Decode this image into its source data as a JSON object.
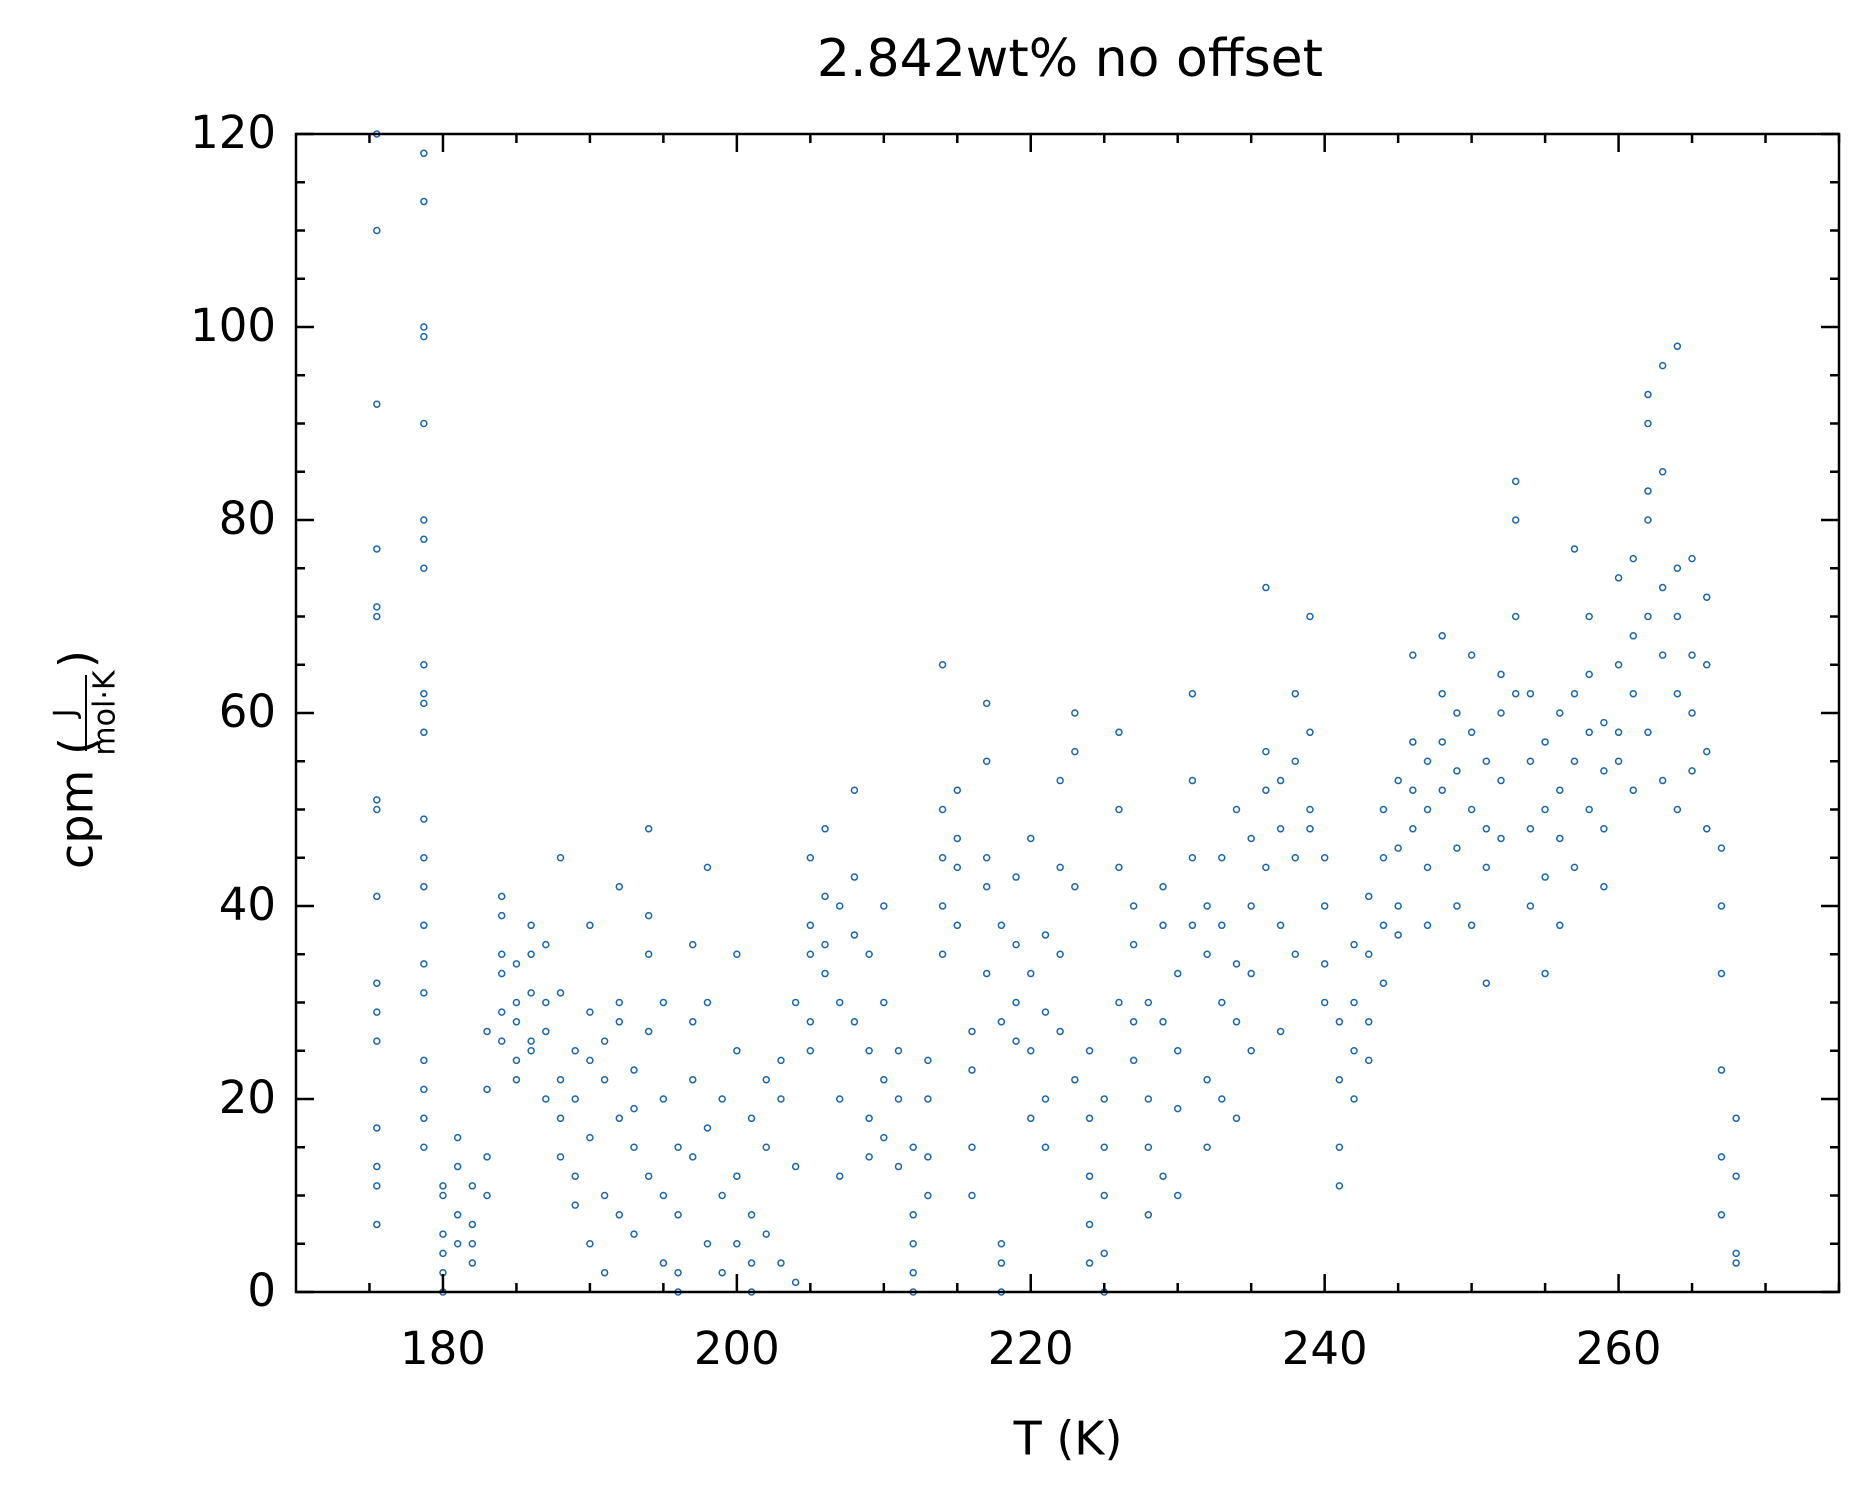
{
  "chart_data": {
    "type": "scatter",
    "title": "2.842wt% no offset",
    "xlabel": "T (K)",
    "ylabel_open": "cpm (",
    "ylabel_unit_numerator": "J",
    "ylabel_unit_denominator": "mol·K",
    "ylabel_close": ")",
    "xlim": [
      170,
      275
    ],
    "xticks": [
      180,
      200,
      220,
      240,
      260
    ],
    "xminorticks": [
      175,
      185,
      190,
      195,
      205,
      210,
      215,
      225,
      230,
      235,
      245,
      250,
      255,
      265,
      270,
      275
    ],
    "ylim": [
      0,
      120
    ],
    "yticks": [
      0,
      20,
      40,
      60,
      80,
      100,
      120
    ],
    "yminorticks": [
      5,
      10,
      15,
      25,
      30,
      35,
      45,
      50,
      55,
      65,
      70,
      75,
      85,
      90,
      95,
      105,
      110,
      115
    ],
    "series": [
      {
        "color": "#1a66ad",
        "x": [
          175.5,
          175.5,
          175.5,
          175.5,
          175.5,
          175.5,
          175.5,
          175.5,
          175.5,
          175.5,
          175.5,
          175.5,
          175.5,
          175.5,
          175.5,
          175.5,
          178.7,
          178.7,
          178.7,
          178.7,
          178.7,
          178.7,
          178.7,
          178.7,
          178.7,
          178.7,
          178.7,
          178.7,
          178.7,
          178.7,
          178.7,
          178.7,
          178.7,
          178.7,
          178.7,
          178.7,
          178.7,
          178.7,
          180,
          180,
          180,
          180,
          180,
          180,
          181,
          181,
          181,
          181,
          182,
          182,
          182,
          182,
          183,
          183,
          183,
          183,
          184,
          184,
          184,
          184,
          184,
          184,
          185,
          185,
          185,
          185,
          185,
          186,
          186,
          186,
          186,
          186,
          187,
          187,
          187,
          187,
          188,
          188,
          188,
          188,
          188,
          189,
          189,
          189,
          189,
          190,
          190,
          190,
          190,
          190,
          191,
          191,
          191,
          191,
          192,
          192,
          192,
          192,
          192,
          193,
          193,
          193,
          193,
          194,
          194,
          194,
          194,
          194,
          195,
          195,
          195,
          195,
          196,
          196,
          196,
          196,
          197,
          197,
          197,
          197,
          198,
          198,
          198,
          198,
          199,
          199,
          199,
          200,
          200,
          200,
          200,
          201,
          201,
          201,
          201,
          202,
          202,
          202,
          203,
          203,
          203,
          204,
          204,
          204,
          205,
          205,
          205,
          205,
          205,
          206,
          206,
          206,
          206,
          207,
          207,
          207,
          207,
          208,
          208,
          208,
          208,
          209,
          209,
          209,
          209,
          210,
          210,
          210,
          210,
          211,
          211,
          211,
          212,
          212,
          212,
          212,
          212,
          213,
          213,
          213,
          213,
          214,
          214,
          214,
          214,
          214,
          215,
          215,
          215,
          215,
          216,
          216,
          216,
          216,
          217,
          217,
          217,
          217,
          217,
          218,
          218,
          218,
          218,
          218,
          219,
          219,
          219,
          219,
          220,
          220,
          220,
          220,
          221,
          221,
          221,
          221,
          222,
          222,
          222,
          222,
          223,
          223,
          223,
          223,
          224,
          224,
          224,
          224,
          224,
          225,
          225,
          225,
          225,
          225,
          226,
          226,
          226,
          226,
          227,
          227,
          227,
          227,
          228,
          228,
          228,
          228,
          229,
          229,
          229,
          229,
          230,
          230,
          230,
          230,
          231,
          231,
          231,
          231,
          232,
          232,
          232,
          232,
          233,
          233,
          233,
          233,
          234,
          234,
          234,
          234,
          235,
          235,
          235,
          235,
          236,
          236,
          236,
          236,
          237,
          237,
          237,
          237,
          238,
          238,
          238,
          238,
          239,
          239,
          239,
          239,
          240,
          240,
          240,
          240,
          241,
          241,
          241,
          241,
          242,
          242,
          242,
          242,
          243,
          243,
          243,
          243,
          244,
          244,
          244,
          244,
          245,
          245,
          245,
          245,
          246,
          246,
          246,
          246,
          247,
          247,
          247,
          247,
          248,
          248,
          248,
          248,
          249,
          249,
          249,
          249,
          250,
          250,
          250,
          250,
          251,
          251,
          251,
          251,
          252,
          252,
          252,
          252,
          253,
          253,
          253,
          253,
          254,
          254,
          254,
          254,
          255,
          255,
          255,
          255,
          256,
          256,
          256,
          256,
          257,
          257,
          257,
          257,
          258,
          258,
          258,
          258,
          259,
          259,
          259,
          259,
          260,
          260,
          260,
          260,
          261,
          261,
          261,
          261,
          262,
          262,
          262,
          262,
          262,
          262,
          263,
          263,
          263,
          263,
          263,
          264,
          264,
          264,
          264,
          264,
          265,
          265,
          265,
          265,
          266,
          266,
          266,
          266,
          267,
          267,
          267,
          267,
          267,
          267,
          268,
          268,
          268,
          268
        ],
        "values": [
          13,
          17,
          7,
          11,
          26,
          29,
          32,
          41,
          50,
          51,
          70,
          71,
          77,
          92,
          110,
          120,
          118,
          113,
          100,
          99,
          90,
          80,
          78,
          75,
          65,
          62,
          61,
          58,
          49,
          45,
          42,
          38,
          34,
          31,
          24,
          21,
          18,
          15,
          6,
          10,
          11,
          4,
          2,
          0,
          16,
          13,
          8,
          5,
          3,
          5,
          11,
          7,
          10,
          14,
          21,
          27,
          26,
          29,
          35,
          39,
          41,
          33,
          24,
          28,
          30,
          34,
          22,
          26,
          31,
          35,
          38,
          25,
          30,
          36,
          27,
          20,
          22,
          31,
          45,
          14,
          18,
          12,
          20,
          25,
          9,
          24,
          29,
          38,
          16,
          5,
          26,
          22,
          10,
          2,
          28,
          42,
          18,
          8,
          30,
          23,
          19,
          15,
          6,
          27,
          35,
          48,
          39,
          12,
          10,
          20,
          3,
          30,
          8,
          15,
          2,
          0,
          28,
          36,
          22,
          14,
          17,
          30,
          44,
          5,
          10,
          20,
          2,
          12,
          25,
          35,
          5,
          8,
          18,
          3,
          0,
          15,
          22,
          6,
          20,
          24,
          3,
          30,
          13,
          1,
          35,
          38,
          45,
          28,
          25,
          33,
          41,
          48,
          36,
          40,
          30,
          20,
          12,
          43,
          52,
          28,
          37,
          25,
          35,
          18,
          14,
          30,
          22,
          40,
          16,
          20,
          25,
          13,
          5,
          8,
          2,
          0,
          15,
          10,
          14,
          24,
          20,
          45,
          50,
          65,
          35,
          40,
          52,
          44,
          38,
          47,
          27,
          23,
          15,
          10,
          33,
          42,
          55,
          61,
          45,
          28,
          38,
          3,
          5,
          0,
          30,
          26,
          43,
          36,
          25,
          33,
          18,
          47,
          29,
          37,
          20,
          15,
          35,
          44,
          53,
          27,
          42,
          56,
          60,
          22,
          12,
          18,
          7,
          3,
          25,
          15,
          10,
          0,
          4,
          20,
          50,
          58,
          44,
          30,
          36,
          40,
          28,
          24,
          20,
          15,
          8,
          30,
          28,
          38,
          42,
          12,
          25,
          33,
          19,
          10,
          45,
          53,
          62,
          38,
          40,
          35,
          22,
          15,
          30,
          38,
          45,
          20,
          28,
          34,
          50,
          18,
          40,
          47,
          25,
          33,
          52,
          56,
          73,
          44,
          38,
          48,
          53,
          27,
          45,
          55,
          62,
          35,
          50,
          58,
          70,
          48,
          40,
          34,
          45,
          30,
          22,
          28,
          15,
          11,
          30,
          36,
          25,
          20,
          28,
          35,
          41,
          24,
          38,
          45,
          50,
          32,
          40,
          46,
          53,
          37,
          48,
          52,
          57,
          66,
          44,
          50,
          55,
          38,
          52,
          57,
          62,
          68,
          46,
          54,
          60,
          40,
          50,
          58,
          66,
          38,
          48,
          55,
          32,
          44,
          53,
          60,
          64,
          47,
          70,
          80,
          84,
          62,
          55,
          62,
          48,
          40,
          50,
          57,
          43,
          33,
          52,
          60,
          47,
          38,
          55,
          62,
          44,
          77,
          50,
          58,
          64,
          70,
          54,
          59,
          42,
          48,
          58,
          65,
          55,
          74,
          62,
          68,
          76,
          52,
          70,
          80,
          83,
          90,
          93,
          58,
          66,
          73,
          85,
          96,
          53,
          62,
          70,
          75,
          98,
          50,
          60,
          66,
          76,
          54,
          56,
          65,
          72,
          48,
          33,
          40,
          46,
          23,
          14,
          8,
          4,
          18,
          12,
          3
        ]
      }
    ]
  }
}
